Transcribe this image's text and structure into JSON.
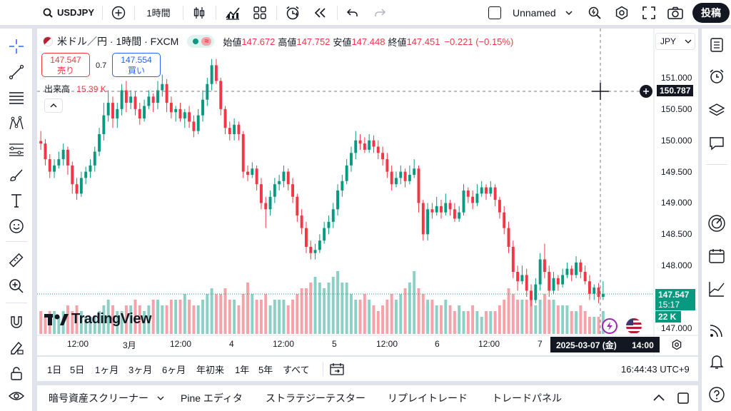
{
  "topbar": {
    "symbol": "USDJPY",
    "interval": "1時間",
    "layout_name": "Unnamed",
    "publish": "投稿"
  },
  "legend": {
    "title": "米ドル／円 · 1時間 · FXCM",
    "open_label": "始値",
    "open": "147.672",
    "high_label": "高値",
    "high": "147.752",
    "low_label": "安値",
    "low": "147.448",
    "close_label": "終値",
    "close": "147.451",
    "change": "−0.221 (−0.15%)",
    "currency": "JPY"
  },
  "trade": {
    "sell_price": "147.547",
    "sell_label": "売り",
    "spread": "0.7",
    "buy_price": "147.554",
    "buy_label": "買い"
  },
  "volume": {
    "label": "出来高",
    "value": "15.39 K",
    "badge": "22 K"
  },
  "watermark": "TradingView",
  "price_axis": {
    "ticks": [
      "151.000",
      "150.500",
      "150.000",
      "149.500",
      "149.000",
      "148.500",
      "148.000",
      "147.000"
    ],
    "crosshair": "150.787",
    "last_price": "147.547",
    "countdown": "15:17"
  },
  "time_axis": {
    "labels": [
      "12:00",
      "3月",
      "12:00",
      "4",
      "12:00",
      "5",
      "12:00",
      "6",
      "12:00",
      "7"
    ],
    "crosshair": "2025-03-07 (金)",
    "crosshair_time": "14:00"
  },
  "ranges": [
    "1日",
    "5日",
    "1ヶ月",
    "3ヶ月",
    "6ヶ月",
    "年初来",
    "1年",
    "5年",
    "すべて"
  ],
  "clock": "16:44:43 UTC+9",
  "panels": [
    "暗号資産スクリーナー",
    "Pine エディタ",
    "ストラテジーテスター",
    "リプレイトレード",
    "トレードパネル"
  ],
  "colors": {
    "up": "#089981",
    "down": "#f23645",
    "up_vol": "#8ccfc4",
    "down_vol": "#f7a1a8"
  },
  "chart_data": {
    "type": "candlestick",
    "title": "米ドル／円 · 1時間 · FXCM",
    "ylim": [
      146.9,
      151.5
    ],
    "candles": [
      [
        149.99,
        149.95,
        150.15,
        149.85
      ],
      [
        149.95,
        149.7,
        150.02,
        149.6
      ],
      [
        149.7,
        149.5,
        149.78,
        149.4
      ],
      [
        149.5,
        149.6,
        149.7,
        149.4
      ],
      [
        149.6,
        149.7,
        149.82,
        149.55
      ],
      [
        149.7,
        149.85,
        149.95,
        149.6
      ],
      [
        149.85,
        149.6,
        149.9,
        149.45
      ],
      [
        149.6,
        149.3,
        149.66,
        149.15
      ],
      [
        149.3,
        149.15,
        149.4,
        149.05
      ],
      [
        149.15,
        149.4,
        149.5,
        149.1
      ],
      [
        149.4,
        149.5,
        149.58,
        149.3
      ],
      [
        149.5,
        149.6,
        149.7,
        149.4
      ],
      [
        149.6,
        149.82,
        149.9,
        149.5
      ],
      [
        149.82,
        150.1,
        150.2,
        149.75
      ],
      [
        150.1,
        150.4,
        150.6,
        150.0
      ],
      [
        150.4,
        150.6,
        150.8,
        150.3
      ],
      [
        150.6,
        150.35,
        150.7,
        150.2
      ],
      [
        150.35,
        150.5,
        150.6,
        150.2
      ],
      [
        150.5,
        150.8,
        150.9,
        150.4
      ],
      [
        150.8,
        150.6,
        150.95,
        150.45
      ],
      [
        150.6,
        150.7,
        150.8,
        150.5
      ],
      [
        150.7,
        150.5,
        150.78,
        150.4
      ],
      [
        150.5,
        150.35,
        150.6,
        150.25
      ],
      [
        150.35,
        150.55,
        150.65,
        150.3
      ],
      [
        150.55,
        150.7,
        150.8,
        150.5
      ],
      [
        150.7,
        150.6,
        150.75,
        150.45
      ],
      [
        150.6,
        150.8,
        150.95,
        150.5
      ],
      [
        150.8,
        150.9,
        151.05,
        150.7
      ],
      [
        150.9,
        150.6,
        150.98,
        150.45
      ],
      [
        150.6,
        150.45,
        150.7,
        150.35
      ],
      [
        150.45,
        150.5,
        150.55,
        150.3
      ],
      [
        150.5,
        150.35,
        150.6,
        150.3
      ],
      [
        150.35,
        150.45,
        150.5,
        150.2
      ],
      [
        150.45,
        150.3,
        150.55,
        150.2
      ],
      [
        150.3,
        150.15,
        150.4,
        150.05
      ],
      [
        150.15,
        150.4,
        150.5,
        150.1
      ],
      [
        150.4,
        150.65,
        150.8,
        150.3
      ],
      [
        150.65,
        150.9,
        151.0,
        150.55
      ],
      [
        150.9,
        151.2,
        151.3,
        150.8
      ],
      [
        151.2,
        150.95,
        151.3,
        150.9
      ],
      [
        150.95,
        150.5,
        151.0,
        150.4
      ],
      [
        150.5,
        150.2,
        150.55,
        150.1
      ],
      [
        150.2,
        150.1,
        150.3,
        150.0
      ],
      [
        150.1,
        150.25,
        150.35,
        150.0
      ],
      [
        150.25,
        150.1,
        150.3,
        150.0
      ],
      [
        150.1,
        149.5,
        150.15,
        149.4
      ],
      [
        149.5,
        149.45,
        149.6,
        149.35
      ],
      [
        149.45,
        149.55,
        149.65,
        149.4
      ],
      [
        149.55,
        149.3,
        149.6,
        149.2
      ],
      [
        149.3,
        149.0,
        149.4,
        148.9
      ],
      [
        149.0,
        148.9,
        149.1,
        148.6
      ],
      [
        148.9,
        149.1,
        149.2,
        148.8
      ],
      [
        149.1,
        149.3,
        149.4,
        149.0
      ],
      [
        149.3,
        149.35,
        149.45,
        149.2
      ],
      [
        149.35,
        149.5,
        149.6,
        149.25
      ],
      [
        149.5,
        149.3,
        149.55,
        149.2
      ],
      [
        149.3,
        149.1,
        149.4,
        149.0
      ],
      [
        149.1,
        148.8,
        149.15,
        148.7
      ],
      [
        148.8,
        148.6,
        148.9,
        148.5
      ],
      [
        148.6,
        148.3,
        148.7,
        148.2
      ],
      [
        148.3,
        148.2,
        148.4,
        148.1
      ],
      [
        148.2,
        148.25,
        148.35,
        148.1
      ],
      [
        148.25,
        148.4,
        148.5,
        148.2
      ],
      [
        148.4,
        148.6,
        148.7,
        148.35
      ],
      [
        148.6,
        148.7,
        148.8,
        148.5
      ],
      [
        148.7,
        148.9,
        149.0,
        148.6
      ],
      [
        148.9,
        149.2,
        149.3,
        148.8
      ],
      [
        149.2,
        149.35,
        149.45,
        149.1
      ],
      [
        149.35,
        149.6,
        149.7,
        149.3
      ],
      [
        149.6,
        149.8,
        149.9,
        149.5
      ],
      [
        149.8,
        150.0,
        150.15,
        149.7
      ],
      [
        150.0,
        149.95,
        150.1,
        149.85
      ],
      [
        149.95,
        149.85,
        150.05,
        149.8
      ],
      [
        149.85,
        150.0,
        150.1,
        149.8
      ],
      [
        150.0,
        149.9,
        150.08,
        149.8
      ],
      [
        149.9,
        149.8,
        150.0,
        149.7
      ],
      [
        149.8,
        149.7,
        149.9,
        149.6
      ],
      [
        149.7,
        149.5,
        149.8,
        149.4
      ],
      [
        149.5,
        149.3,
        149.6,
        149.2
      ],
      [
        149.3,
        149.4,
        149.5,
        149.25
      ],
      [
        149.4,
        149.5,
        149.6,
        149.3
      ],
      [
        149.5,
        149.35,
        149.55,
        149.25
      ],
      [
        149.35,
        149.45,
        149.6,
        149.3
      ],
      [
        149.45,
        149.55,
        149.7,
        149.4
      ],
      [
        149.55,
        149.0,
        149.6,
        148.85
      ],
      [
        149.0,
        148.5,
        149.05,
        148.4
      ],
      [
        148.5,
        148.9,
        149.0,
        148.4
      ],
      [
        148.9,
        148.85,
        149.0,
        148.75
      ],
      [
        148.85,
        148.95,
        149.1,
        148.8
      ],
      [
        148.95,
        148.85,
        149.05,
        148.75
      ],
      [
        148.85,
        149.0,
        149.15,
        148.8
      ],
      [
        149.0,
        148.9,
        149.05,
        148.8
      ],
      [
        148.9,
        148.75,
        149.0,
        148.7
      ],
      [
        148.75,
        148.85,
        148.95,
        148.7
      ],
      [
        148.85,
        149.2,
        149.3,
        148.8
      ],
      [
        149.2,
        149.1,
        149.25,
        149.0
      ],
      [
        149.1,
        149.0,
        149.2,
        148.9
      ],
      [
        149.0,
        149.15,
        149.3,
        148.95
      ],
      [
        149.15,
        149.25,
        149.35,
        149.1
      ],
      [
        149.25,
        149.15,
        149.3,
        149.05
      ],
      [
        149.15,
        149.25,
        149.35,
        149.1
      ],
      [
        149.25,
        149.05,
        149.3,
        148.95
      ],
      [
        149.05,
        148.85,
        149.1,
        148.75
      ],
      [
        148.85,
        148.6,
        148.95,
        148.5
      ],
      [
        148.6,
        148.3,
        148.7,
        148.2
      ],
      [
        148.3,
        147.9,
        148.4,
        147.8
      ],
      [
        147.9,
        147.75,
        148.0,
        147.6
      ],
      [
        147.75,
        147.85,
        148.0,
        147.7
      ],
      [
        147.85,
        147.6,
        147.95,
        147.5
      ],
      [
        147.6,
        147.45,
        147.7,
        147.35
      ],
      [
        147.45,
        147.7,
        147.8,
        147.4
      ],
      [
        147.7,
        148.1,
        148.2,
        147.6
      ],
      [
        148.1,
        147.9,
        148.35,
        147.8
      ],
      [
        147.9,
        147.6,
        148.0,
        147.5
      ],
      [
        147.6,
        147.8,
        147.9,
        147.55
      ],
      [
        147.8,
        147.7,
        147.85,
        147.6
      ],
      [
        147.7,
        147.85,
        147.95,
        147.65
      ],
      [
        147.85,
        147.95,
        148.05,
        147.8
      ],
      [
        147.95,
        147.85,
        148.0,
        147.75
      ],
      [
        147.85,
        148.05,
        148.15,
        147.8
      ],
      [
        148.05,
        147.9,
        148.1,
        147.8
      ],
      [
        147.9,
        147.75,
        148.0,
        147.7
      ],
      [
        147.75,
        147.55,
        147.85,
        147.45
      ],
      [
        147.55,
        147.65,
        147.7,
        147.45
      ],
      [
        147.65,
        147.5,
        147.72,
        147.4
      ],
      [
        147.5,
        147.55,
        147.75,
        147.45
      ]
    ],
    "volume": [
      4,
      3,
      4,
      4,
      3,
      4,
      5,
      4,
      5,
      4,
      3,
      3,
      3,
      4,
      5,
      6,
      5,
      4,
      4,
      5,
      5,
      6,
      5,
      4,
      5,
      6,
      6,
      5,
      5,
      6,
      6,
      6,
      7,
      6,
      5,
      5,
      6,
      7,
      8,
      7,
      7,
      8,
      6,
      6,
      5,
      7,
      9,
      7,
      6,
      6,
      7,
      5,
      6,
      6,
      6,
      5,
      6,
      7,
      8,
      8,
      9,
      10,
      9,
      8,
      9,
      10,
      11,
      9,
      9,
      7,
      6,
      6,
      7,
      6,
      5,
      4,
      5,
      6,
      7,
      6,
      7,
      8,
      9,
      11,
      8,
      7,
      6,
      6,
      5,
      5,
      6,
      5,
      4,
      5,
      4,
      4,
      5,
      4,
      3,
      4,
      4,
      4,
      5,
      6,
      8,
      7,
      6,
      6,
      6,
      7,
      5,
      6,
      7,
      6,
      6,
      5,
      5,
      5,
      4,
      4,
      5,
      4,
      3,
      3,
      3,
      4
    ]
  }
}
